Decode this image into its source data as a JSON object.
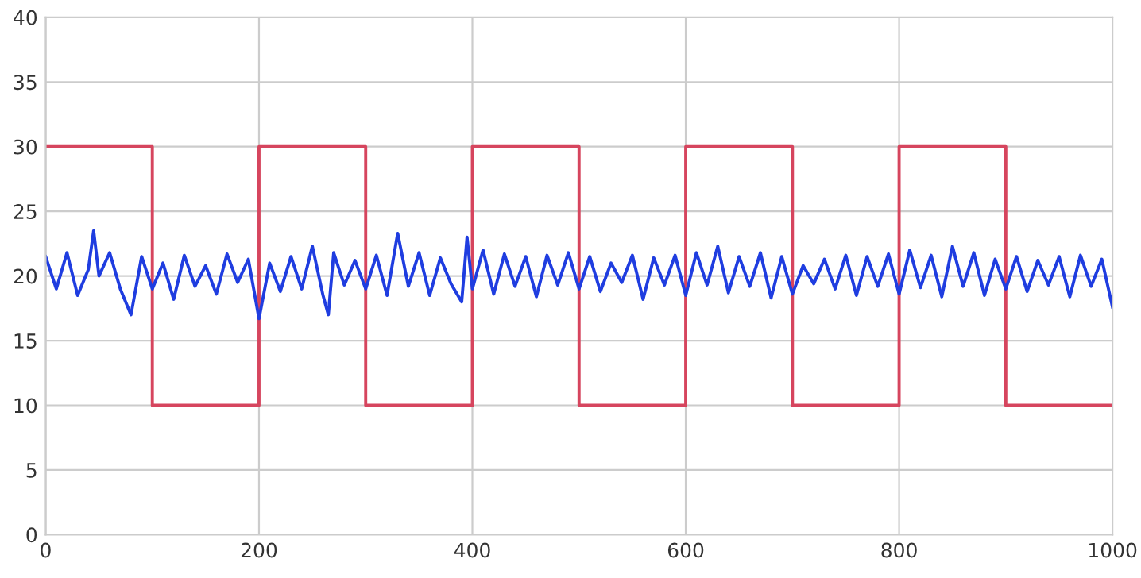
{
  "chart_data": {
    "type": "line",
    "series": [
      {
        "color": "#d6455e",
        "x": [
          0,
          100,
          100,
          200,
          200,
          300,
          300,
          400,
          400,
          500,
          500,
          600,
          600,
          700,
          700,
          800,
          800,
          900,
          900,
          1000
        ],
        "values": [
          30,
          30,
          10,
          10,
          30,
          30,
          10,
          10,
          30,
          30,
          10,
          10,
          30,
          30,
          10,
          10,
          30,
          30,
          10,
          10
        ]
      },
      {
        "color": "#1f3de0",
        "x": [
          0,
          10,
          20,
          30,
          40,
          45,
          50,
          60,
          70,
          80,
          90,
          100,
          110,
          120,
          130,
          140,
          150,
          160,
          170,
          180,
          190,
          200,
          210,
          220,
          230,
          240,
          250,
          260,
          265,
          270,
          280,
          290,
          300,
          310,
          320,
          330,
          340,
          350,
          360,
          370,
          380,
          390,
          395,
          400,
          410,
          420,
          430,
          440,
          450,
          460,
          470,
          480,
          490,
          500,
          510,
          520,
          530,
          540,
          550,
          560,
          570,
          580,
          590,
          600,
          610,
          620,
          630,
          640,
          650,
          660,
          670,
          680,
          690,
          700,
          710,
          720,
          730,
          740,
          750,
          760,
          770,
          780,
          790,
          800,
          810,
          820,
          830,
          840,
          850,
          860,
          870,
          880,
          890,
          900,
          910,
          920,
          930,
          940,
          950,
          960,
          970,
          980,
          990,
          1000
        ],
        "values": [
          21.5,
          19,
          21.8,
          18.5,
          20.5,
          23.5,
          20,
          21.8,
          19,
          17,
          21.5,
          19,
          21,
          18.2,
          21.6,
          19.2,
          20.8,
          18.6,
          21.7,
          19.5,
          21.3,
          16.7,
          21,
          18.8,
          21.5,
          19,
          22.3,
          18.5,
          17,
          21.8,
          19.3,
          21.2,
          19,
          21.6,
          18.5,
          23.3,
          19.2,
          21.8,
          18.5,
          21.4,
          19.4,
          18,
          23,
          19,
          22,
          18.6,
          21.7,
          19.2,
          21.5,
          18.4,
          21.6,
          19.3,
          21.8,
          19,
          21.5,
          18.8,
          21,
          19.5,
          21.6,
          18.2,
          21.4,
          19.3,
          21.6,
          18.5,
          21.8,
          19.3,
          22.3,
          18.7,
          21.5,
          19.2,
          21.8,
          18.3,
          21.5,
          18.6,
          20.8,
          19.4,
          21.3,
          19,
          21.6,
          18.5,
          21.5,
          19.2,
          21.7,
          18.6,
          22,
          19.1,
          21.6,
          18.4,
          22.3,
          19.2,
          21.8,
          18.5,
          21.3,
          19,
          21.5,
          18.8,
          21.2,
          19.3,
          21.5,
          18.4,
          21.6,
          19.2,
          21.3,
          17.6
        ]
      }
    ],
    "xlim": [
      0,
      1000
    ],
    "ylim": [
      0,
      40
    ],
    "xticks": [
      0,
      200,
      400,
      600,
      800,
      1000
    ],
    "yticks": [
      0,
      5,
      10,
      15,
      20,
      25,
      30,
      35,
      40
    ],
    "grid": true
  }
}
